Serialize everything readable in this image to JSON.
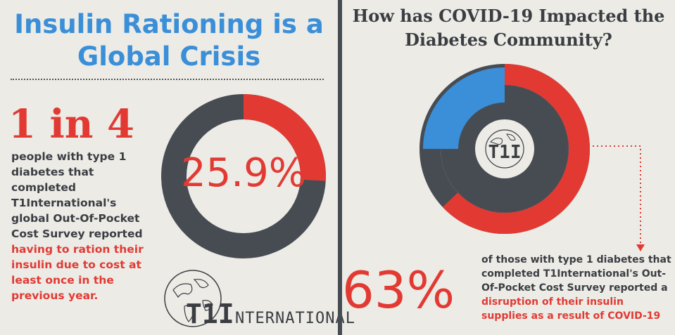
{
  "left": {
    "title": "Insulin Rationing is a Global Crisis",
    "highlight": "1 in 4",
    "body_plain": "people with type 1 diabetes that completed T1International's global Out-Of-Pocket Cost Survey reported ",
    "body_red": "having to ration their insulin due to cost at least once in the previous year.",
    "percent": "25.9%",
    "donut_fraction": 0.259,
    "logo_text": "T1International"
  },
  "right": {
    "title": "How has COVID-19 Impacted the Diabetes Community?",
    "percent": "63%",
    "body_plain": "of those with type 1 diabetes that completed T1International's Out-Of-Pocket Cost Survey reported a ",
    "body_red": "disruption of their insulin supplies as a result of COVID-19",
    "outer_fraction": 0.63,
    "logo_text": "T1I"
  },
  "colors": {
    "red": "#e23a33",
    "blue": "#3a8fd8",
    "dark": "#474c53",
    "background": "#ecebe6"
  },
  "icons": [
    "globe-icon",
    "arrow-down-icon"
  ]
}
